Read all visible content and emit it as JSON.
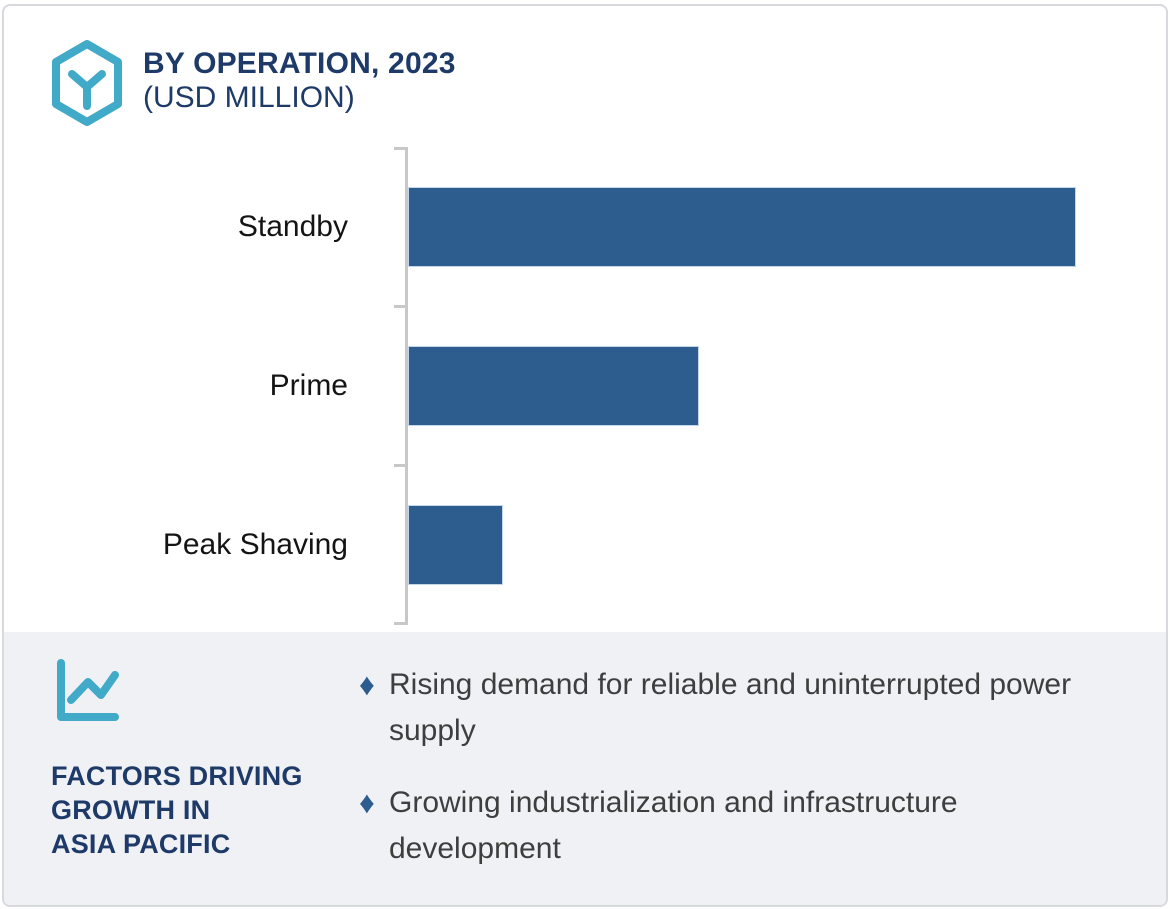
{
  "header": {
    "icon": "hexagon-cube-icon"
  },
  "chart_data": {
    "type": "bar",
    "orientation": "horizontal",
    "title": "BY OPERATION, 2023",
    "subtitle": "(USD MILLION)",
    "units": "USD Million",
    "categories": [
      "Standby",
      "Prime",
      "Peak Shaving"
    ],
    "values_relative_pct_of_max": [
      100,
      43.5,
      14.2
    ],
    "value_labels_shown": false,
    "numeric_axis_shown": false,
    "grid": false,
    "legend": false,
    "bar_color": "#2d5d8e",
    "axis_color": "#c8c8c8"
  },
  "factors": {
    "icon": "line-chart-icon",
    "heading_lines": [
      "FACTORS DRIVING",
      "GROWTH IN",
      "ASIA PACIFIC"
    ],
    "bullet_glyph": "♦",
    "items": [
      "Rising demand for reliable and uninterrupted power supply",
      "Growing industrialization and infrastructure development"
    ]
  },
  "colors": {
    "navy_text": "#1e3a68",
    "teal_accent": "#41aac8",
    "bar_blue": "#2d5d8e",
    "panel_background": "#f0f1f4",
    "body_text": "#3e3e3e",
    "card_border": "#d7d9de"
  }
}
